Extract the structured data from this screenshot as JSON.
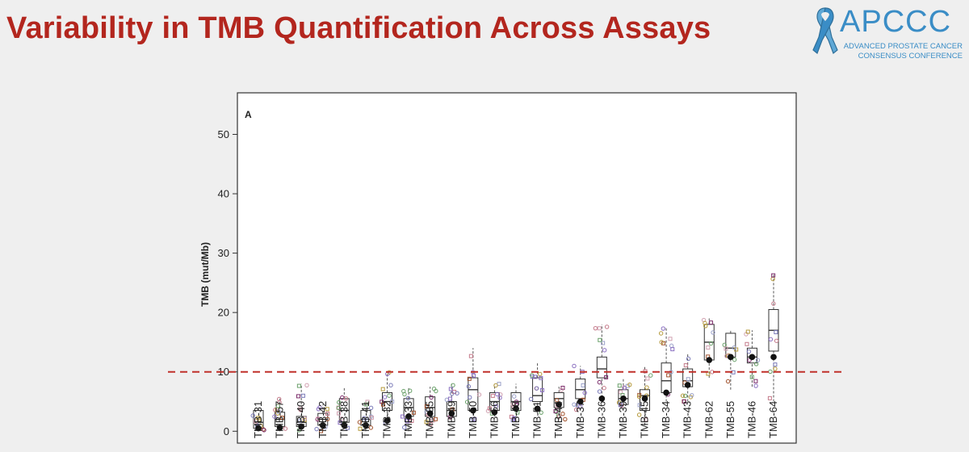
{
  "slide": {
    "title": "Variability in TMB Quantification Across Assays"
  },
  "logo": {
    "name": "APCCC",
    "line1": "ADVANCED PROSTATE CANCER",
    "line2": "CONSENSUS CONFERENCE",
    "color": "#3a8dc6"
  },
  "colors": {
    "title": "#b3261e",
    "threshold": "#c0302a"
  },
  "chart_data": {
    "type": "box",
    "panel_label": "A",
    "ylabel": "TMB (mut/Mb)",
    "xlabel": "",
    "ylim": [
      -2,
      57
    ],
    "yticks": [
      0,
      10,
      20,
      30,
      40,
      50
    ],
    "grid": false,
    "reference_line": {
      "y": 10,
      "style": "dashed",
      "color": "#c0302a"
    },
    "categories": [
      "TMB-31",
      "TMB-57",
      "TMB-40",
      "TMB-42",
      "TMB-38",
      "TMB-41",
      "TMB-32",
      "TMB-33",
      "TMB-35",
      "TMB-49",
      "TMB-50",
      "TMB-56",
      "TMB-48",
      "TMB-51",
      "TMB-44",
      "TMB-37",
      "TMB-36",
      "TMB-39",
      "TMB-45",
      "TMB-34",
      "TMB-43",
      "TMB-62",
      "TMB-55",
      "TMB-46",
      "TMB-64"
    ],
    "boxes": [
      {
        "q1": 0.5,
        "median": 1.5,
        "q3": 3.5,
        "whisker_low": 0,
        "whisker_high": 4,
        "reference": 0.5
      },
      {
        "q1": 0.8,
        "median": 2.0,
        "q3": 3.2,
        "whisker_low": 0,
        "whisker_high": 5.5,
        "reference": 0.6
      },
      {
        "q1": 0.8,
        "median": 1.5,
        "q3": 2.5,
        "whisker_low": 0,
        "whisker_high": 8,
        "reference": 0.8
      },
      {
        "q1": 1.0,
        "median": 2.0,
        "q3": 3.0,
        "whisker_low": 0,
        "whisker_high": 4.5,
        "reference": 1.0
      },
      {
        "q1": 1.5,
        "median": 3.5,
        "q3": 5.5,
        "whisker_low": 0.5,
        "whisker_high": 7.5,
        "reference": 1.0
      },
      {
        "q1": 1.0,
        "median": 2.0,
        "q3": 3.5,
        "whisker_low": 0,
        "whisker_high": 5,
        "reference": 1.0
      },
      {
        "q1": 3.5,
        "median": 5.0,
        "q3": 6.5,
        "whisker_low": 1,
        "whisker_high": 10,
        "reference": 1.8
      },
      {
        "q1": 2.5,
        "median": 4.0,
        "q3": 5.5,
        "whisker_low": 0,
        "whisker_high": 7.5,
        "reference": 2.5
      },
      {
        "q1": 2.5,
        "median": 4.0,
        "q3": 5.8,
        "whisker_low": 1,
        "whisker_high": 7.5,
        "reference": 3.0
      },
      {
        "q1": 2.5,
        "median": 3.5,
        "q3": 5.0,
        "whisker_low": 1.5,
        "whisker_high": 8,
        "reference": 3.0
      },
      {
        "q1": 3.5,
        "median": 7.0,
        "q3": 9.0,
        "whisker_low": 2,
        "whisker_high": 14,
        "reference": 3.5
      },
      {
        "q1": 3.5,
        "median": 5.0,
        "q3": 6.5,
        "whisker_low": 2.5,
        "whisker_high": 8,
        "reference": 3.2
      },
      {
        "q1": 3.5,
        "median": 5.0,
        "q3": 6.5,
        "whisker_low": 1.5,
        "whisker_high": 8,
        "reference": 3.8
      },
      {
        "q1": 5.0,
        "median": 6.0,
        "q3": 9.0,
        "whisker_low": 3,
        "whisker_high": 11.5,
        "reference": 3.8
      },
      {
        "q1": 4.0,
        "median": 5.5,
        "q3": 6.5,
        "whisker_low": 2,
        "whisker_high": 7.5,
        "reference": 4.5
      },
      {
        "q1": 5.5,
        "median": 7.0,
        "q3": 8.8,
        "whisker_low": 3.5,
        "whisker_high": 11,
        "reference": 5.0
      },
      {
        "q1": 9.0,
        "median": 10.5,
        "q3": 12.5,
        "whisker_low": 5,
        "whisker_high": 18,
        "reference": 5.5
      },
      {
        "q1": 4.5,
        "median": 5.5,
        "q3": 7.0,
        "whisker_low": 3.5,
        "whisker_high": 9,
        "reference": 5.5
      },
      {
        "q1": 3.5,
        "median": 6.0,
        "q3": 7.0,
        "whisker_low": 1,
        "whisker_high": 11,
        "reference": 5.5
      },
      {
        "q1": 6.5,
        "median": 8.5,
        "q3": 11.5,
        "whisker_low": 5,
        "whisker_high": 17.5,
        "reference": 6.5
      },
      {
        "q1": 7.5,
        "median": 8.5,
        "q3": 10.5,
        "whisker_low": 5,
        "whisker_high": 13,
        "reference": 7.8
      },
      {
        "q1": 12.0,
        "median": 15.0,
        "q3": 18.0,
        "whisker_low": 9,
        "whisker_high": 19,
        "reference": 12.0
      },
      {
        "q1": 12.5,
        "median": 14.0,
        "q3": 16.5,
        "whisker_low": 7,
        "whisker_high": 17,
        "reference": 12.5
      },
      {
        "q1": 11.5,
        "median": 12.5,
        "q3": 14.0,
        "whisker_low": 7.5,
        "whisker_high": 17,
        "reference": 12.5
      },
      {
        "q1": 13.5,
        "median": 17.0,
        "q3": 20.5,
        "whisker_low": 5,
        "whisker_high": 26.5,
        "reference": 12.5
      }
    ]
  }
}
